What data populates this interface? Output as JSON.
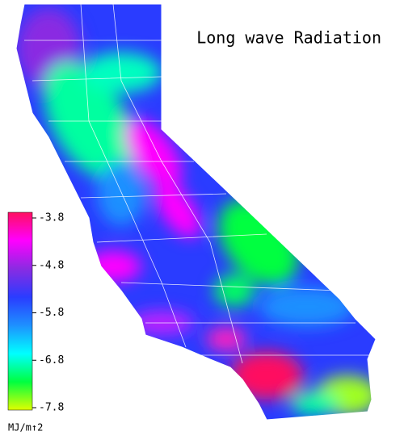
{
  "title": "Long wave Radiation",
  "colorbar": {
    "ticks": [
      -3.8,
      -4.8,
      -5.8,
      -6.8,
      -7.8
    ],
    "unit": "MJ/m↑2",
    "colormap": [
      "#ff1060",
      "#ff00ff",
      "#8a2be2",
      "#2a3cff",
      "#1e90ff",
      "#00ffff",
      "#00ff40",
      "#e0ff00"
    ]
  }
}
